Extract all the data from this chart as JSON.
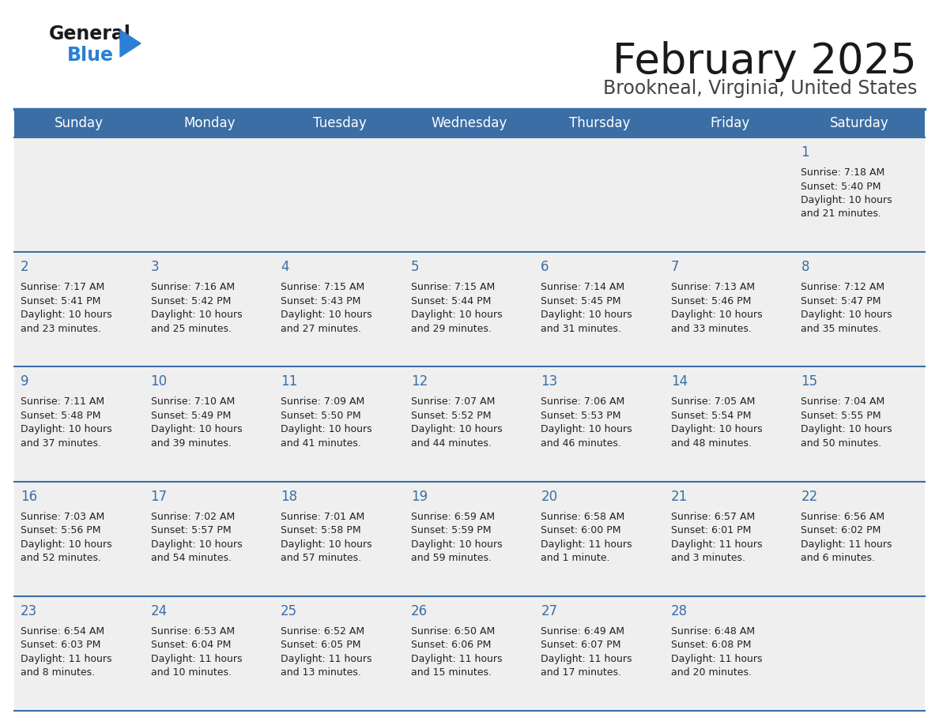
{
  "title": "February 2025",
  "subtitle": "Brookneal, Virginia, United States",
  "header_bg": "#3A6EA5",
  "header_text_color": "#FFFFFF",
  "cell_bg": "#EFEFEF",
  "day_number_color": "#3A6EA5",
  "info_text_color": "#222222",
  "separator_color": "#3A6EA5",
  "days_of_week": [
    "Sunday",
    "Monday",
    "Tuesday",
    "Wednesday",
    "Thursday",
    "Friday",
    "Saturday"
  ],
  "weeks": [
    [
      {
        "day": null,
        "sunrise": null,
        "sunset": null,
        "daylight": null
      },
      {
        "day": null,
        "sunrise": null,
        "sunset": null,
        "daylight": null
      },
      {
        "day": null,
        "sunrise": null,
        "sunset": null,
        "daylight": null
      },
      {
        "day": null,
        "sunrise": null,
        "sunset": null,
        "daylight": null
      },
      {
        "day": null,
        "sunrise": null,
        "sunset": null,
        "daylight": null
      },
      {
        "day": null,
        "sunrise": null,
        "sunset": null,
        "daylight": null
      },
      {
        "day": 1,
        "sunrise": "7:18 AM",
        "sunset": "5:40 PM",
        "daylight": "10 hours\nand 21 minutes."
      }
    ],
    [
      {
        "day": 2,
        "sunrise": "7:17 AM",
        "sunset": "5:41 PM",
        "daylight": "10 hours\nand 23 minutes."
      },
      {
        "day": 3,
        "sunrise": "7:16 AM",
        "sunset": "5:42 PM",
        "daylight": "10 hours\nand 25 minutes."
      },
      {
        "day": 4,
        "sunrise": "7:15 AM",
        "sunset": "5:43 PM",
        "daylight": "10 hours\nand 27 minutes."
      },
      {
        "day": 5,
        "sunrise": "7:15 AM",
        "sunset": "5:44 PM",
        "daylight": "10 hours\nand 29 minutes."
      },
      {
        "day": 6,
        "sunrise": "7:14 AM",
        "sunset": "5:45 PM",
        "daylight": "10 hours\nand 31 minutes."
      },
      {
        "day": 7,
        "sunrise": "7:13 AM",
        "sunset": "5:46 PM",
        "daylight": "10 hours\nand 33 minutes."
      },
      {
        "day": 8,
        "sunrise": "7:12 AM",
        "sunset": "5:47 PM",
        "daylight": "10 hours\nand 35 minutes."
      }
    ],
    [
      {
        "day": 9,
        "sunrise": "7:11 AM",
        "sunset": "5:48 PM",
        "daylight": "10 hours\nand 37 minutes."
      },
      {
        "day": 10,
        "sunrise": "7:10 AM",
        "sunset": "5:49 PM",
        "daylight": "10 hours\nand 39 minutes."
      },
      {
        "day": 11,
        "sunrise": "7:09 AM",
        "sunset": "5:50 PM",
        "daylight": "10 hours\nand 41 minutes."
      },
      {
        "day": 12,
        "sunrise": "7:07 AM",
        "sunset": "5:52 PM",
        "daylight": "10 hours\nand 44 minutes."
      },
      {
        "day": 13,
        "sunrise": "7:06 AM",
        "sunset": "5:53 PM",
        "daylight": "10 hours\nand 46 minutes."
      },
      {
        "day": 14,
        "sunrise": "7:05 AM",
        "sunset": "5:54 PM",
        "daylight": "10 hours\nand 48 minutes."
      },
      {
        "day": 15,
        "sunrise": "7:04 AM",
        "sunset": "5:55 PM",
        "daylight": "10 hours\nand 50 minutes."
      }
    ],
    [
      {
        "day": 16,
        "sunrise": "7:03 AM",
        "sunset": "5:56 PM",
        "daylight": "10 hours\nand 52 minutes."
      },
      {
        "day": 17,
        "sunrise": "7:02 AM",
        "sunset": "5:57 PM",
        "daylight": "10 hours\nand 54 minutes."
      },
      {
        "day": 18,
        "sunrise": "7:01 AM",
        "sunset": "5:58 PM",
        "daylight": "10 hours\nand 57 minutes."
      },
      {
        "day": 19,
        "sunrise": "6:59 AM",
        "sunset": "5:59 PM",
        "daylight": "10 hours\nand 59 minutes."
      },
      {
        "day": 20,
        "sunrise": "6:58 AM",
        "sunset": "6:00 PM",
        "daylight": "11 hours\nand 1 minute."
      },
      {
        "day": 21,
        "sunrise": "6:57 AM",
        "sunset": "6:01 PM",
        "daylight": "11 hours\nand 3 minutes."
      },
      {
        "day": 22,
        "sunrise": "6:56 AM",
        "sunset": "6:02 PM",
        "daylight": "11 hours\nand 6 minutes."
      }
    ],
    [
      {
        "day": 23,
        "sunrise": "6:54 AM",
        "sunset": "6:03 PM",
        "daylight": "11 hours\nand 8 minutes."
      },
      {
        "day": 24,
        "sunrise": "6:53 AM",
        "sunset": "6:04 PM",
        "daylight": "11 hours\nand 10 minutes."
      },
      {
        "day": 25,
        "sunrise": "6:52 AM",
        "sunset": "6:05 PM",
        "daylight": "11 hours\nand 13 minutes."
      },
      {
        "day": 26,
        "sunrise": "6:50 AM",
        "sunset": "6:06 PM",
        "daylight": "11 hours\nand 15 minutes."
      },
      {
        "day": 27,
        "sunrise": "6:49 AM",
        "sunset": "6:07 PM",
        "daylight": "11 hours\nand 17 minutes."
      },
      {
        "day": 28,
        "sunrise": "6:48 AM",
        "sunset": "6:08 PM",
        "daylight": "11 hours\nand 20 minutes."
      },
      {
        "day": null,
        "sunrise": null,
        "sunset": null,
        "daylight": null
      }
    ]
  ]
}
